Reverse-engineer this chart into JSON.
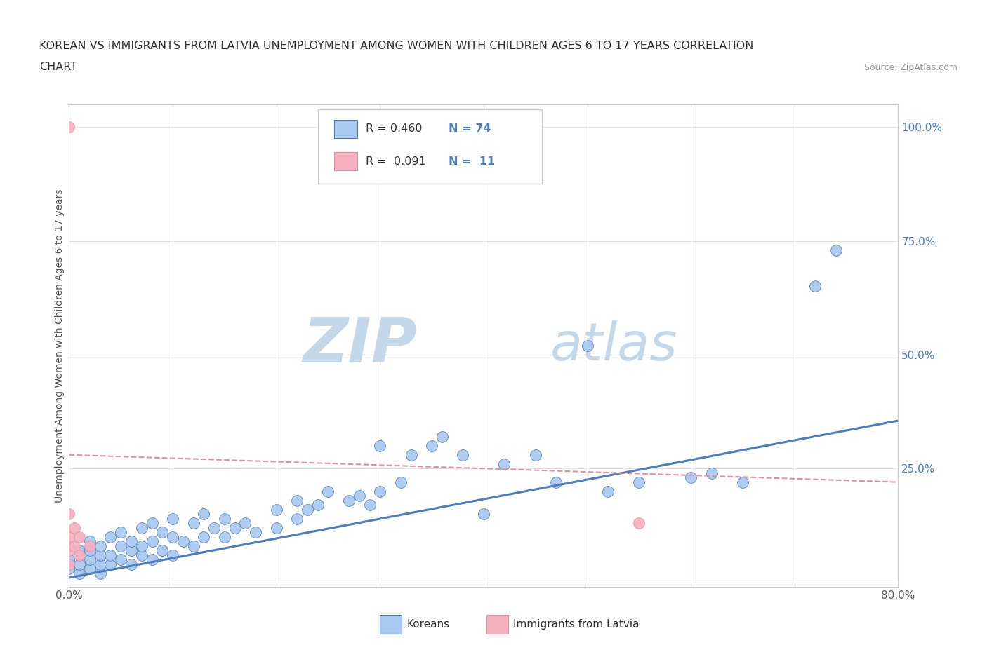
{
  "title_line1": "KOREAN VS IMMIGRANTS FROM LATVIA UNEMPLOYMENT AMONG WOMEN WITH CHILDREN AGES 6 TO 17 YEARS CORRELATION",
  "title_line2": "CHART",
  "source_text": "Source: ZipAtlas.com",
  "ylabel": "Unemployment Among Women with Children Ages 6 to 17 years",
  "xlim": [
    0.0,
    0.8
  ],
  "ylim": [
    -0.01,
    1.05
  ],
  "xticks": [
    0.0,
    0.1,
    0.2,
    0.3,
    0.4,
    0.5,
    0.6,
    0.7,
    0.8
  ],
  "xticklabels": [
    "0.0%",
    "",
    "",
    "",
    "",
    "",
    "",
    "",
    "80.0%"
  ],
  "yticks": [
    0.0,
    0.25,
    0.5,
    0.75,
    1.0
  ],
  "yticklabels": [
    "",
    "25.0%",
    "50.0%",
    "75.0%",
    "100.0%"
  ],
  "korean_color": "#a8c8f0",
  "latvia_color": "#f4b0be",
  "trend_blue": "#4a7ec0",
  "trend_pink": "#e090a0",
  "R_korean": 0.46,
  "N_korean": 74,
  "R_latvia": 0.091,
  "N_latvia": 11,
  "watermark": "ZIPatlas",
  "watermark_color": "#c5d8ea",
  "yaxis_label_color": "#4a7ec0",
  "korean_x": [
    0.0,
    0.0,
    0.0,
    0.01,
    0.01,
    0.01,
    0.02,
    0.02,
    0.02,
    0.02,
    0.03,
    0.03,
    0.03,
    0.03,
    0.04,
    0.04,
    0.04,
    0.05,
    0.05,
    0.05,
    0.06,
    0.06,
    0.06,
    0.07,
    0.07,
    0.07,
    0.08,
    0.08,
    0.08,
    0.09,
    0.09,
    0.1,
    0.1,
    0.1,
    0.11,
    0.12,
    0.12,
    0.13,
    0.13,
    0.14,
    0.15,
    0.15,
    0.16,
    0.17,
    0.18,
    0.2,
    0.2,
    0.22,
    0.22,
    0.23,
    0.24,
    0.25,
    0.27,
    0.28,
    0.29,
    0.3,
    0.3,
    0.32,
    0.33,
    0.35,
    0.36,
    0.38,
    0.4,
    0.42,
    0.45,
    0.47,
    0.5,
    0.52,
    0.55,
    0.6,
    0.62,
    0.65,
    0.72,
    0.74
  ],
  "korean_y": [
    0.03,
    0.05,
    0.08,
    0.02,
    0.04,
    0.07,
    0.03,
    0.05,
    0.07,
    0.09,
    0.02,
    0.04,
    0.06,
    0.08,
    0.04,
    0.06,
    0.1,
    0.05,
    0.08,
    0.11,
    0.04,
    0.07,
    0.09,
    0.06,
    0.08,
    0.12,
    0.05,
    0.09,
    0.13,
    0.07,
    0.11,
    0.06,
    0.1,
    0.14,
    0.09,
    0.08,
    0.13,
    0.1,
    0.15,
    0.12,
    0.1,
    0.14,
    0.12,
    0.13,
    0.11,
    0.12,
    0.16,
    0.14,
    0.18,
    0.16,
    0.17,
    0.2,
    0.18,
    0.19,
    0.17,
    0.2,
    0.3,
    0.22,
    0.28,
    0.3,
    0.32,
    0.28,
    0.15,
    0.26,
    0.28,
    0.22,
    0.52,
    0.2,
    0.22,
    0.23,
    0.24,
    0.22,
    0.65,
    0.73
  ],
  "latvia_x": [
    0.0,
    0.0,
    0.0,
    0.0,
    0.0,
    0.005,
    0.005,
    0.01,
    0.01,
    0.02,
    0.55
  ],
  "latvia_y": [
    1.0,
    0.15,
    0.1,
    0.07,
    0.04,
    0.08,
    0.12,
    0.06,
    0.1,
    0.08,
    0.13
  ],
  "trend_k_x0": 0.0,
  "trend_k_y0": 0.01,
  "trend_k_x1": 0.8,
  "trend_k_y1": 0.355,
  "trend_l_x0": 0.0,
  "trend_l_y0": 0.28,
  "trend_l_x1": 0.8,
  "trend_l_y1": 0.22
}
